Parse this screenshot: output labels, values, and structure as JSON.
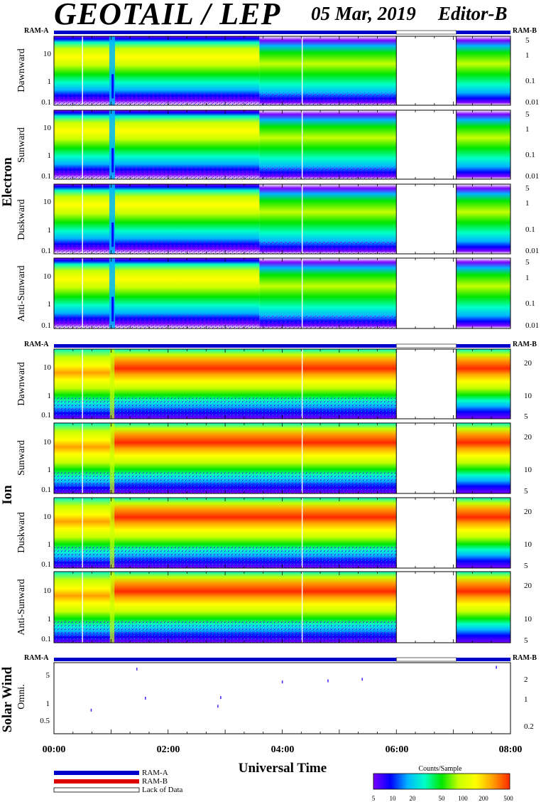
{
  "header": {
    "title": "GEOTAIL / LEP",
    "date": "05 Mar, 2019",
    "editor": "Editor-B"
  },
  "ram_labels": {
    "ram_a": "RAM-A",
    "ram_b": "RAM-B"
  },
  "groups": {
    "electron": "Electron",
    "ion": "Ion",
    "solar_wind": "Solar Wind"
  },
  "panel_labels": {
    "e_dawn": "Dawnward",
    "e_sun": "Sunward",
    "e_dusk": "Duskward",
    "e_anti": "Anti-Sunward",
    "i_dawn": "Dawnward",
    "i_sun": "Sunward",
    "i_dusk": "Duskward",
    "i_anti": "Anti-Sunward",
    "sw_omni": "Omni."
  },
  "electron_left_ticks": [
    "10",
    "1",
    "0.1"
  ],
  "electron_right_ticks": [
    "5",
    "1",
    "0.1",
    "0.01"
  ],
  "ion_left_ticks": [
    "10",
    "1",
    "0.1"
  ],
  "ion_right_ticks": [
    "20",
    "10",
    "5"
  ],
  "sw_left_ticks": [
    "5",
    "1",
    "0.5"
  ],
  "sw_right_ticks": [
    "2",
    "1",
    "0.2"
  ],
  "x_axis": {
    "label": "Universal Time",
    "ticks": [
      "00:00",
      "02:00",
      "04:00",
      "06:00",
      "08:00"
    ]
  },
  "legend": {
    "ram_a": "RAM-A",
    "ram_b": "RAM-B",
    "lack": "Lack of Data"
  },
  "colorbar": {
    "title": "Counts/Sample",
    "ticks": [
      "5",
      "10",
      "20",
      "50",
      "100",
      "200",
      "500"
    ]
  },
  "colors": {
    "ram_a": "#0000cc",
    "ram_b": "#dd0000",
    "scale": [
      "#ffffff",
      "#7b00ff",
      "#0000ff",
      "#00b4ff",
      "#00ffc8",
      "#00e600",
      "#c8ff00",
      "#ffff00",
      "#ffa000",
      "#ff2800"
    ]
  },
  "chart_data": [
    {
      "type": "heatmap",
      "title": "Electron",
      "panels": [
        "Dawnward",
        "Sunward",
        "Duskward",
        "Anti-Sunward"
      ],
      "x_range_hours_ut": [
        0,
        8
      ],
      "ylim": [
        0.1,
        30
      ],
      "yscale": "log",
      "right_axis_ticks": [
        "5",
        "1",
        "0.1",
        "0.01"
      ],
      "data_gaps_hours_ut": [
        [
          6.0,
          7.05
        ]
      ],
      "features": {
        "dropout_hours_ut": [
          0.95,
          1.05
        ],
        "band_fade_start_hours_ut": 3.5
      }
    },
    {
      "type": "heatmap",
      "title": "Ion",
      "panels": [
        "Dawnward",
        "Sunward",
        "Duskward",
        "Anti-Sunward"
      ],
      "x_range_hours_ut": [
        0,
        8
      ],
      "ylim": [
        0.1,
        30
      ],
      "yscale": "log",
      "right_axis_ticks": [
        "20",
        "10",
        "5"
      ],
      "data_gaps_hours_ut": [
        [
          6.0,
          7.05
        ]
      ],
      "features": {
        "dropout_hours_ut": [
          0.95,
          1.05
        ],
        "peak_energy_after_gap": 15
      }
    },
    {
      "type": "scatter",
      "title": "Solar Wind",
      "panel": "Omni.",
      "ylim": [
        0.25,
        9
      ],
      "yscale": "log",
      "x": [
        0.65,
        1.45,
        1.6,
        2.87,
        2.92,
        4.0,
        4.8,
        5.4,
        7.75
      ],
      "y": [
        0.82,
        6.5,
        1.5,
        1.0,
        1.55,
        3.4,
        3.6,
        3.9,
        7.1
      ]
    }
  ]
}
